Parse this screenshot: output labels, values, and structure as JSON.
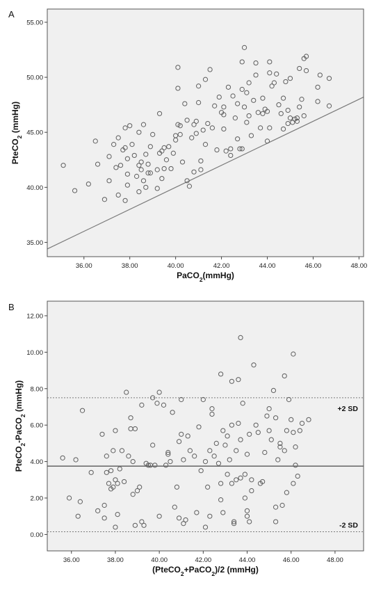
{
  "chart_data": [
    {
      "type": "scatter",
      "panel_label": "A",
      "xlabel": "PaCO₂(mmHg)",
      "ylabel": "PteCO₂ (mmHg)",
      "xlim": [
        34.4,
        48.2
      ],
      "ylim": [
        33.7,
        56.2
      ],
      "xticks": [
        36,
        38,
        40,
        42,
        44,
        46,
        48
      ],
      "yticks": [
        35,
        40,
        45,
        50,
        55
      ],
      "x_tick_labels": [
        "36.00",
        "38.00",
        "40.00",
        "42.00",
        "44.00",
        "46.00",
        "48.00"
      ],
      "y_tick_labels": [
        "35.00",
        "40.00",
        "45.00",
        "50.00",
        "55.00"
      ],
      "grid": false,
      "reference_line": "identity y = x",
      "points": [
        [
          35.1,
          42.0
        ],
        [
          35.6,
          39.7
        ],
        [
          36.2,
          40.3
        ],
        [
          36.5,
          44.2
        ],
        [
          36.6,
          42.1
        ],
        [
          36.9,
          38.9
        ],
        [
          37.1,
          40.6
        ],
        [
          37.1,
          42.8
        ],
        [
          37.3,
          43.9
        ],
        [
          37.4,
          41.8
        ],
        [
          37.5,
          44.5
        ],
        [
          37.5,
          39.3
        ],
        [
          37.6,
          42.0
        ],
        [
          37.7,
          43.4
        ],
        [
          37.8,
          38.8
        ],
        [
          37.8,
          45.4
        ],
        [
          37.8,
          43.6
        ],
        [
          37.9,
          42.6
        ],
        [
          37.9,
          41.2
        ],
        [
          37.9,
          40.2
        ],
        [
          38.0,
          45.6
        ],
        [
          38.1,
          43.9
        ],
        [
          38.2,
          42.9
        ],
        [
          38.3,
          41.0
        ],
        [
          38.4,
          39.6
        ],
        [
          38.4,
          45.0
        ],
        [
          38.4,
          42.0
        ],
        [
          38.5,
          42.3
        ],
        [
          38.5,
          41.6
        ],
        [
          38.6,
          40.6
        ],
        [
          38.6,
          45.7
        ],
        [
          38.7,
          43.0
        ],
        [
          38.7,
          40.0
        ],
        [
          38.8,
          41.3
        ],
        [
          38.8,
          42.1
        ],
        [
          38.9,
          41.3
        ],
        [
          38.9,
          43.7
        ],
        [
          39.0,
          44.8
        ],
        [
          39.2,
          41.6
        ],
        [
          39.2,
          39.9
        ],
        [
          39.3,
          43.1
        ],
        [
          39.3,
          46.7
        ],
        [
          39.4,
          40.8
        ],
        [
          39.4,
          43.3
        ],
        [
          39.5,
          41.7
        ],
        [
          39.5,
          43.6
        ],
        [
          39.6,
          42.5
        ],
        [
          39.7,
          43.7
        ],
        [
          39.8,
          41.7
        ],
        [
          39.9,
          43.1
        ],
        [
          40.0,
          44.3
        ],
        [
          40.0,
          44.7
        ],
        [
          40.1,
          45.7
        ],
        [
          40.1,
          49.0
        ],
        [
          40.1,
          50.9
        ],
        [
          40.2,
          45.6
        ],
        [
          40.2,
          44.8
        ],
        [
          40.3,
          42.3
        ],
        [
          40.4,
          47.6
        ],
        [
          40.5,
          40.6
        ],
        [
          40.5,
          46.1
        ],
        [
          40.6,
          40.1
        ],
        [
          40.7,
          44.5
        ],
        [
          40.8,
          45.7
        ],
        [
          40.8,
          41.4
        ],
        [
          40.9,
          44.9
        ],
        [
          40.9,
          46.0
        ],
        [
          41.0,
          47.7
        ],
        [
          41.0,
          49.2
        ],
        [
          41.1,
          42.4
        ],
        [
          41.1,
          41.6
        ],
        [
          41.2,
          45.2
        ],
        [
          41.3,
          49.8
        ],
        [
          41.3,
          43.9
        ],
        [
          41.4,
          45.8
        ],
        [
          41.5,
          50.7
        ],
        [
          41.6,
          45.4
        ],
        [
          41.7,
          47.4
        ],
        [
          41.8,
          43.4
        ],
        [
          41.9,
          48.2
        ],
        [
          42.0,
          46.8
        ],
        [
          42.1,
          45.3
        ],
        [
          42.1,
          47.3
        ],
        [
          42.1,
          46.6
        ],
        [
          42.2,
          43.3
        ],
        [
          42.3,
          49.1
        ],
        [
          42.4,
          43.5
        ],
        [
          42.4,
          42.9
        ],
        [
          42.5,
          48.3
        ],
        [
          42.6,
          46.3
        ],
        [
          42.7,
          47.6
        ],
        [
          42.7,
          44.4
        ],
        [
          42.8,
          43.5
        ],
        [
          42.9,
          48.9
        ],
        [
          42.9,
          51.4
        ],
        [
          42.9,
          43.5
        ],
        [
          43.0,
          52.7
        ],
        [
          43.0,
          47.3
        ],
        [
          43.1,
          45.9
        ],
        [
          43.1,
          48.6
        ],
        [
          43.2,
          46.5
        ],
        [
          43.2,
          49.5
        ],
        [
          43.3,
          44.7
        ],
        [
          43.4,
          47.9
        ],
        [
          43.5,
          50.2
        ],
        [
          43.5,
          51.3
        ],
        [
          43.6,
          46.8
        ],
        [
          43.7,
          45.4
        ],
        [
          43.8,
          48.1
        ],
        [
          43.8,
          46.7
        ],
        [
          43.9,
          47.1
        ],
        [
          44.0,
          44.2
        ],
        [
          44.0,
          46.9
        ],
        [
          44.1,
          51.4
        ],
        [
          44.1,
          50.4
        ],
        [
          44.1,
          45.4
        ],
        [
          44.2,
          49.2
        ],
        [
          44.3,
          49.5
        ],
        [
          44.4,
          50.3
        ],
        [
          44.5,
          47.5
        ],
        [
          44.6,
          46.7
        ],
        [
          44.7,
          45.3
        ],
        [
          44.7,
          48.1
        ],
        [
          44.8,
          49.6
        ],
        [
          44.9,
          45.8
        ],
        [
          44.9,
          47.0
        ],
        [
          45.0,
          46.3
        ],
        [
          45.0,
          49.9
        ],
        [
          45.1,
          45.9
        ],
        [
          45.2,
          46.2
        ],
        [
          45.3,
          46.3
        ],
        [
          45.3,
          46.0
        ],
        [
          45.4,
          47.3
        ],
        [
          45.5,
          48.0
        ],
        [
          45.6,
          51.7
        ],
        [
          45.6,
          46.5
        ],
        [
          45.7,
          50.6
        ],
        [
          46.2,
          47.8
        ],
        [
          46.2,
          49.1
        ],
        [
          46.3,
          50.2
        ],
        [
          46.7,
          49.9
        ],
        [
          46.7,
          47.4
        ],
        [
          45.7,
          51.9
        ],
        [
          45.4,
          50.8
        ]
      ]
    },
    {
      "type": "scatter",
      "panel_label": "B",
      "xlabel": "(PteCO₂+PaCO₂)/2 (mmHg)",
      "ylabel": "PteCO₂-PaCO₂ (mmHg)",
      "xlim": [
        34.9,
        49.3
      ],
      "ylim": [
        -0.9,
        12.8
      ],
      "xticks": [
        36,
        38,
        40,
        42,
        44,
        46,
        48
      ],
      "yticks": [
        0,
        2,
        4,
        6,
        8,
        10,
        12
      ],
      "x_tick_labels": [
        "36.00",
        "38.00",
        "40.00",
        "42.00",
        "44.00",
        "46.00",
        "48.00"
      ],
      "y_tick_labels": [
        "0.00",
        "2.00",
        "4.00",
        "6.00",
        "8.00",
        "10.00",
        "12.00"
      ],
      "grid": false,
      "mean_line": 3.75,
      "upper_limit": 7.5,
      "lower_limit": 0.15,
      "upper_label": "+2 SD",
      "lower_label": "-2 SD",
      "points": [
        [
          35.6,
          4.2
        ],
        [
          35.9,
          2.0
        ],
        [
          36.2,
          4.1
        ],
        [
          36.3,
          1.0
        ],
        [
          36.4,
          1.8
        ],
        [
          36.5,
          6.8
        ],
        [
          36.9,
          3.4
        ],
        [
          37.2,
          1.3
        ],
        [
          37.4,
          5.5
        ],
        [
          37.5,
          1.6
        ],
        [
          37.5,
          0.9
        ],
        [
          37.6,
          3.4
        ],
        [
          37.6,
          4.3
        ],
        [
          37.7,
          2.8
        ],
        [
          37.8,
          2.5
        ],
        [
          37.8,
          3.5
        ],
        [
          37.9,
          4.6
        ],
        [
          37.9,
          2.6
        ],
        [
          38.0,
          5.7
        ],
        [
          38.0,
          3.0
        ],
        [
          38.0,
          0.4
        ],
        [
          38.1,
          2.8
        ],
        [
          38.1,
          1.1
        ],
        [
          38.2,
          3.6
        ],
        [
          38.3,
          4.6
        ],
        [
          38.4,
          2.9
        ],
        [
          38.5,
          7.8
        ],
        [
          38.6,
          4.3
        ],
        [
          38.7,
          5.8
        ],
        [
          38.7,
          6.4
        ],
        [
          38.8,
          4.0
        ],
        [
          38.8,
          2.2
        ],
        [
          38.9,
          0.5
        ],
        [
          38.9,
          5.8
        ],
        [
          39.0,
          2.4
        ],
        [
          39.1,
          2.6
        ],
        [
          39.2,
          0.7
        ],
        [
          39.2,
          7.1
        ],
        [
          39.3,
          0.5
        ],
        [
          39.4,
          3.9
        ],
        [
          39.5,
          3.8
        ],
        [
          39.6,
          3.8
        ],
        [
          39.7,
          7.5
        ],
        [
          39.7,
          4.9
        ],
        [
          39.8,
          3.8
        ],
        [
          39.9,
          7.2
        ],
        [
          40.0,
          1.0
        ],
        [
          40.0,
          7.8
        ],
        [
          40.2,
          7.1
        ],
        [
          40.3,
          3.8
        ],
        [
          40.4,
          4.4
        ],
        [
          40.4,
          4.5
        ],
        [
          40.5,
          4.0
        ],
        [
          40.6,
          6.7
        ],
        [
          40.7,
          1.5
        ],
        [
          40.8,
          2.6
        ],
        [
          40.9,
          0.9
        ],
        [
          40.9,
          5.1
        ],
        [
          41.0,
          5.5
        ],
        [
          41.0,
          7.4
        ],
        [
          41.1,
          4.1
        ],
        [
          41.1,
          0.6
        ],
        [
          41.2,
          0.8
        ],
        [
          41.3,
          5.4
        ],
        [
          41.4,
          4.6
        ],
        [
          41.6,
          4.3
        ],
        [
          41.7,
          1.2
        ],
        [
          41.8,
          5.9
        ],
        [
          41.9,
          3.5
        ],
        [
          42.0,
          7.4
        ],
        [
          42.1,
          0.4
        ],
        [
          42.1,
          4.0
        ],
        [
          42.2,
          2.6
        ],
        [
          42.3,
          4.6
        ],
        [
          42.3,
          1.0
        ],
        [
          42.4,
          6.6
        ],
        [
          42.4,
          6.9
        ],
        [
          42.5,
          4.3
        ],
        [
          42.6,
          5.0
        ],
        [
          42.7,
          3.9
        ],
        [
          42.8,
          8.8
        ],
        [
          42.8,
          1.9
        ],
        [
          42.8,
          2.8
        ],
        [
          42.9,
          1.2
        ],
        [
          42.9,
          5.7
        ],
        [
          43.0,
          4.9
        ],
        [
          43.1,
          5.4
        ],
        [
          43.1,
          3.3
        ],
        [
          43.2,
          4.1
        ],
        [
          43.3,
          2.8
        ],
        [
          43.3,
          6.0
        ],
        [
          43.3,
          8.4
        ],
        [
          43.4,
          0.7
        ],
        [
          43.4,
          0.6
        ],
        [
          43.5,
          3.0
        ],
        [
          43.5,
          4.6
        ],
        [
          43.6,
          8.5
        ],
        [
          43.6,
          6.1
        ],
        [
          43.7,
          10.8
        ],
        [
          43.7,
          5.2
        ],
        [
          43.7,
          3.1
        ],
        [
          43.8,
          7.2
        ],
        [
          43.9,
          2.0
        ],
        [
          43.9,
          3.3
        ],
        [
          44.0,
          1.3
        ],
        [
          44.0,
          4.4
        ],
        [
          44.0,
          1.0
        ],
        [
          44.1,
          5.5
        ],
        [
          44.1,
          0.7
        ],
        [
          44.2,
          3.0
        ],
        [
          44.2,
          2.4
        ],
        [
          44.3,
          9.3
        ],
        [
          44.4,
          6.0
        ],
        [
          44.5,
          5.6
        ],
        [
          44.6,
          2.8
        ],
        [
          44.7,
          2.9
        ],
        [
          44.8,
          4.5
        ],
        [
          44.9,
          6.5
        ],
        [
          45.0,
          5.7
        ],
        [
          45.0,
          6.9
        ],
        [
          45.1,
          5.2
        ],
        [
          45.2,
          7.9
        ],
        [
          45.3,
          6.4
        ],
        [
          45.3,
          1.5
        ],
        [
          45.3,
          0.7
        ],
        [
          45.4,
          4.1
        ],
        [
          45.5,
          4.8
        ],
        [
          45.5,
          5.0
        ],
        [
          45.6,
          1.6
        ],
        [
          45.7,
          4.6
        ],
        [
          45.7,
          8.7
        ],
        [
          45.8,
          5.7
        ],
        [
          45.8,
          2.3
        ],
        [
          45.9,
          7.4
        ],
        [
          46.0,
          6.3
        ],
        [
          46.1,
          2.8
        ],
        [
          46.1,
          9.9
        ],
        [
          46.1,
          5.6
        ],
        [
          46.2,
          4.8
        ],
        [
          46.3,
          3.2
        ],
        [
          46.4,
          5.7
        ],
        [
          46.5,
          6.1
        ],
        [
          46.8,
          6.3
        ],
        [
          46.2,
          3.8
        ]
      ]
    }
  ]
}
